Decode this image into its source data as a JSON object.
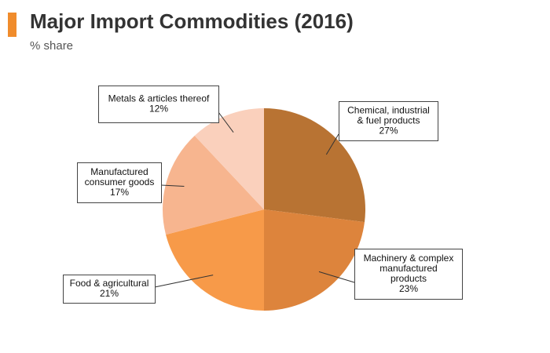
{
  "header": {
    "title": "Major Import Commodities (2016)",
    "subtitle": "% share"
  },
  "colors": {
    "accent": "#f08c2c"
  },
  "chart_data": {
    "type": "pie",
    "title": "Major Import Commodities (2016)",
    "subtitle": "% share",
    "slices": [
      {
        "label": "Chemical, industrial & fuel products",
        "label_lines": [
          "Chemical, industrial",
          "& fuel products"
        ],
        "value": 27,
        "value_label": "27%",
        "color": "#b87333"
      },
      {
        "label": "Machinery & complex manufactured products",
        "label_lines": [
          "Machinery & complex",
          "manufactured",
          "products"
        ],
        "value": 23,
        "value_label": "23%",
        "color": "#dd843c"
      },
      {
        "label": "Food & agricultural",
        "label_lines": [
          "Food & agricultural"
        ],
        "value": 21,
        "value_label": "21%",
        "color": "#f79a49"
      },
      {
        "label": "Manufactured consumer goods",
        "label_lines": [
          "Manufactured",
          "consumer goods"
        ],
        "value": 17,
        "value_label": "17%",
        "color": "#f7b58f"
      },
      {
        "label": "Metals & articles thereof",
        "label_lines": [
          "Metals & articles thereof"
        ],
        "value": 12,
        "value_label": "12%",
        "color": "#fad0bc"
      }
    ]
  }
}
